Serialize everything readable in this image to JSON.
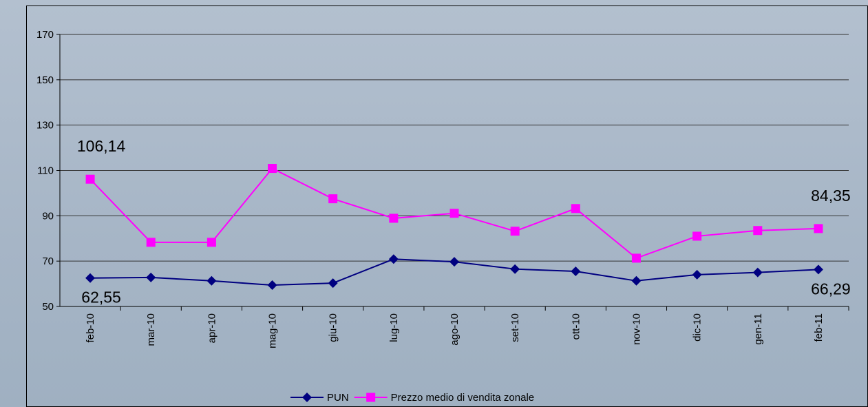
{
  "chart_data": {
    "type": "line",
    "categories": [
      "feb-10",
      "mar-10",
      "apr-10",
      "mag-10",
      "giu-10",
      "lug-10",
      "ago-10",
      "set-10",
      "ott-10",
      "nov-10",
      "dic-10",
      "gen-11",
      "feb-11"
    ],
    "series": [
      {
        "name": "PUN",
        "color": "#000080",
        "marker": "diamond",
        "values": [
          62.55,
          62.8,
          61.3,
          59.4,
          60.3,
          70.9,
          69.7,
          66.5,
          65.5,
          61.3,
          64,
          65,
          66.29
        ],
        "value_labels": [
          "62,55",
          null,
          null,
          null,
          null,
          null,
          null,
          null,
          null,
          null,
          null,
          null,
          "66,29"
        ]
      },
      {
        "name": "Prezzo medio di vendita zonale",
        "color": "#ff00ff",
        "marker": "square",
        "values": [
          106.14,
          78.3,
          78.3,
          110.9,
          97.5,
          88.9,
          91.1,
          83.2,
          93.2,
          71.3,
          81,
          83.5,
          84.35
        ],
        "value_labels": [
          "106,14",
          null,
          null,
          null,
          null,
          null,
          null,
          null,
          null,
          null,
          null,
          null,
          "84,35"
        ]
      }
    ],
    "ylim": [
      50,
      170
    ],
    "yticks": [
      50,
      70,
      90,
      110,
      130,
      150,
      170
    ],
    "grid": true,
    "legend": "bottom"
  }
}
